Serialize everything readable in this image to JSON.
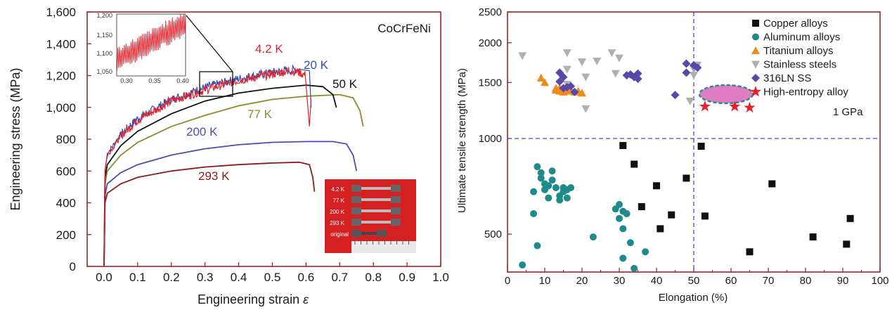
{
  "chart_data": [
    {
      "type": "line",
      "title": "CoCrFeNi",
      "xlabel": "Engineering strain",
      "xlabel_symbol": "ε",
      "ylabel": "Engineering stress (MPa)",
      "xlim": [
        -0.05,
        1.0
      ],
      "ylim": [
        0,
        1600
      ],
      "x_ticks": [
        "0.0",
        "0.1",
        "0.2",
        "0.3",
        "0.4",
        "0.5",
        "0.6",
        "0.7",
        "0.8",
        "0.9",
        "1.0"
      ],
      "y_ticks": [
        "0",
        "200",
        "400",
        "600",
        "800",
        "1,000",
        "1,200",
        "1,400",
        "1,600"
      ],
      "series": [
        {
          "name": "4.2 K",
          "color": "#e8202a",
          "serrated": true,
          "points": [
            [
              0,
              0
            ],
            [
              0.003,
              600
            ],
            [
              0.01,
              700
            ],
            [
              0.05,
              820
            ],
            [
              0.1,
              920
            ],
            [
              0.2,
              1040
            ],
            [
              0.3,
              1110
            ],
            [
              0.4,
              1170
            ],
            [
              0.5,
              1210
            ],
            [
              0.55,
              1230
            ],
            [
              0.58,
              1220
            ],
            [
              0.6,
              1200
            ],
            [
              0.61,
              880
            ],
            [
              0.615,
              1050
            ]
          ]
        },
        {
          "name": "20 K",
          "color": "#2a4fb0",
          "serrated": true,
          "points": [
            [
              0,
              0
            ],
            [
              0.003,
              610
            ],
            [
              0.01,
              710
            ],
            [
              0.05,
              830
            ],
            [
              0.1,
              930
            ],
            [
              0.2,
              1050
            ],
            [
              0.3,
              1125
            ],
            [
              0.4,
              1180
            ],
            [
              0.5,
              1220
            ],
            [
              0.58,
              1240
            ],
            [
              0.61,
              1230
            ],
            [
              0.615,
              1000
            ]
          ]
        },
        {
          "name": "50 K",
          "color": "#111111",
          "serrated": false,
          "points": [
            [
              0,
              0
            ],
            [
              0.003,
              560
            ],
            [
              0.01,
              640
            ],
            [
              0.05,
              760
            ],
            [
              0.1,
              850
            ],
            [
              0.2,
              960
            ],
            [
              0.3,
              1040
            ],
            [
              0.4,
              1090
            ],
            [
              0.5,
              1120
            ],
            [
              0.6,
              1140
            ],
            [
              0.65,
              1130
            ],
            [
              0.68,
              1080
            ],
            [
              0.69,
              1000
            ]
          ]
        },
        {
          "name": "77 K",
          "color": "#8c8a2a",
          "serrated": false,
          "points": [
            [
              0,
              0
            ],
            [
              0.003,
              520
            ],
            [
              0.01,
              600
            ],
            [
              0.05,
              700
            ],
            [
              0.1,
              780
            ],
            [
              0.2,
              880
            ],
            [
              0.3,
              950
            ],
            [
              0.4,
              1010
            ],
            [
              0.5,
              1050
            ],
            [
              0.6,
              1070
            ],
            [
              0.7,
              1080
            ],
            [
              0.74,
              1060
            ],
            [
              0.76,
              980
            ],
            [
              0.77,
              880
            ]
          ]
        },
        {
          "name": "200 K",
          "color": "#4a4bb8",
          "serrated": false,
          "points": [
            [
              0,
              0
            ],
            [
              0.003,
              450
            ],
            [
              0.01,
              520
            ],
            [
              0.05,
              590
            ],
            [
              0.1,
              640
            ],
            [
              0.2,
              700
            ],
            [
              0.3,
              740
            ],
            [
              0.4,
              765
            ],
            [
              0.5,
              780
            ],
            [
              0.6,
              785
            ],
            [
              0.68,
              785
            ],
            [
              0.72,
              770
            ],
            [
              0.74,
              700
            ],
            [
              0.75,
              600
            ]
          ]
        },
        {
          "name": "293 K",
          "color": "#8b1a1a",
          "serrated": false,
          "points": [
            [
              0,
              0
            ],
            [
              0.003,
              400
            ],
            [
              0.01,
              460
            ],
            [
              0.05,
              520
            ],
            [
              0.1,
              560
            ],
            [
              0.2,
              600
            ],
            [
              0.3,
              625
            ],
            [
              0.4,
              640
            ],
            [
              0.5,
              650
            ],
            [
              0.58,
              655
            ],
            [
              0.61,
              640
            ],
            [
              0.62,
              560
            ],
            [
              0.625,
              470
            ]
          ]
        }
      ],
      "inset": {
        "xlim": [
          0.3,
          0.4
        ],
        "ylim": [
          1050,
          1200
        ],
        "x_ticks": [
          "0.30",
          "0.35",
          "0.40"
        ],
        "y_ticks": [
          "1,050",
          "1,100",
          "1,150",
          "1,200"
        ]
      },
      "photo_labels": [
        "4.2 K",
        "77 K",
        "200 K",
        "293 K",
        "original"
      ]
    },
    {
      "type": "scatter",
      "xlabel": "Elongation (%)",
      "ylabel": "Ultimate tensile strength (MPa)",
      "xlim": [
        0,
        100
      ],
      "ylim": [
        380,
        2500
      ],
      "y_scale": "log",
      "x_ticks": [
        "0",
        "10",
        "20",
        "30",
        "40",
        "50",
        "60",
        "70",
        "80",
        "90",
        "100"
      ],
      "y_ticks": [
        "500",
        "1000",
        "1500",
        "2000",
        "2500"
      ],
      "reference_line_label": "1 GPa",
      "reference_lines": {
        "x": 50,
        "y": 1000
      },
      "legend_position": "top-right",
      "series": [
        {
          "name": "Copper alloys",
          "marker": "square",
          "color": "#111111",
          "points": [
            [
              31,
              950
            ],
            [
              34,
              830
            ],
            [
              36,
              610
            ],
            [
              40,
              710
            ],
            [
              41,
              520
            ],
            [
              44,
              575
            ],
            [
              48,
              750
            ],
            [
              52,
              945
            ],
            [
              53,
              570
            ],
            [
              65,
              440
            ],
            [
              71,
              720
            ],
            [
              82,
              490
            ],
            [
              91,
              465
            ],
            [
              92,
              560
            ]
          ]
        },
        {
          "name": "Aluminum alloys",
          "marker": "circle",
          "color": "#1e8a8a",
          "points": [
            [
              4,
              400
            ],
            [
              7,
              680
            ],
            [
              7,
              580
            ],
            [
              8,
              460
            ],
            [
              8,
              815
            ],
            [
              9,
              750
            ],
            [
              9,
              780
            ],
            [
              10,
              720
            ],
            [
              10,
              690
            ],
            [
              11,
              710
            ],
            [
              11,
              650
            ],
            [
              12,
              740
            ],
            [
              12,
              790
            ],
            [
              13,
              700
            ],
            [
              14,
              660
            ],
            [
              14,
              640
            ],
            [
              15,
              680
            ],
            [
              15,
              700
            ],
            [
              16,
              690
            ],
            [
              16,
              650
            ],
            [
              17,
              700
            ],
            [
              23,
              490
            ],
            [
              29,
              600
            ],
            [
              30,
              620
            ],
            [
              30,
              560
            ],
            [
              31,
              520
            ],
            [
              31,
              590
            ],
            [
              31,
              420
            ],
            [
              32,
              580
            ],
            [
              33,
              470
            ],
            [
              34,
              390
            ],
            [
              37,
              440
            ],
            [
              37,
              370
            ]
          ]
        },
        {
          "name": "Titanium alloys",
          "marker": "triangle-up",
          "color": "#f08a1a",
          "points": [
            [
              9,
              1550
            ],
            [
              10,
              1500
            ],
            [
              13,
              1440
            ],
            [
              13,
              1420
            ],
            [
              14,
              1410
            ],
            [
              14,
              1440
            ],
            [
              15,
              1400
            ],
            [
              15,
              1430
            ],
            [
              16,
              1410
            ],
            [
              17,
              1420
            ],
            [
              18,
              1400
            ],
            [
              19,
              1410
            ],
            [
              20,
              1390
            ]
          ]
        },
        {
          "name": "Stainless steels",
          "marker": "triangle-down",
          "color": "#b0b0b0",
          "points": [
            [
              4,
              1820
            ],
            [
              16,
              1860
            ],
            [
              16,
              1650
            ],
            [
              16,
              1480
            ],
            [
              20,
              1740
            ],
            [
              21,
              1560
            ],
            [
              21,
              1240
            ],
            [
              24,
              1750
            ],
            [
              28,
              1860
            ],
            [
              29,
              1600
            ],
            [
              30,
              1790
            ],
            [
              49,
              1310
            ],
            [
              50,
              1650
            ],
            [
              50,
              1580
            ],
            [
              51,
              1700
            ]
          ]
        },
        {
          "name": "316LN SS",
          "marker": "diamond",
          "color": "#5a48a8",
          "points": [
            [
              14,
              1610
            ],
            [
              14,
              1510
            ],
            [
              15,
              1560
            ],
            [
              15,
              1440
            ],
            [
              16,
              1450
            ],
            [
              17,
              1460
            ],
            [
              18,
              1400
            ],
            [
              32,
              1580
            ],
            [
              33,
              1590
            ],
            [
              34,
              1560
            ],
            [
              34,
              1560
            ],
            [
              35,
              1600
            ],
            [
              35,
              1540
            ],
            [
              45,
              1370
            ],
            [
              48,
              1610
            ],
            [
              48,
              1720
            ],
            [
              50,
              1700
            ],
            [
              51,
              1670
            ]
          ]
        },
        {
          "name": "High-entropy alloy",
          "marker": "star",
          "color": "#e8202a",
          "points": [
            [
              53,
              1260
            ],
            [
              61,
              1260
            ],
            [
              65,
              1250
            ]
          ]
        }
      ]
    }
  ]
}
